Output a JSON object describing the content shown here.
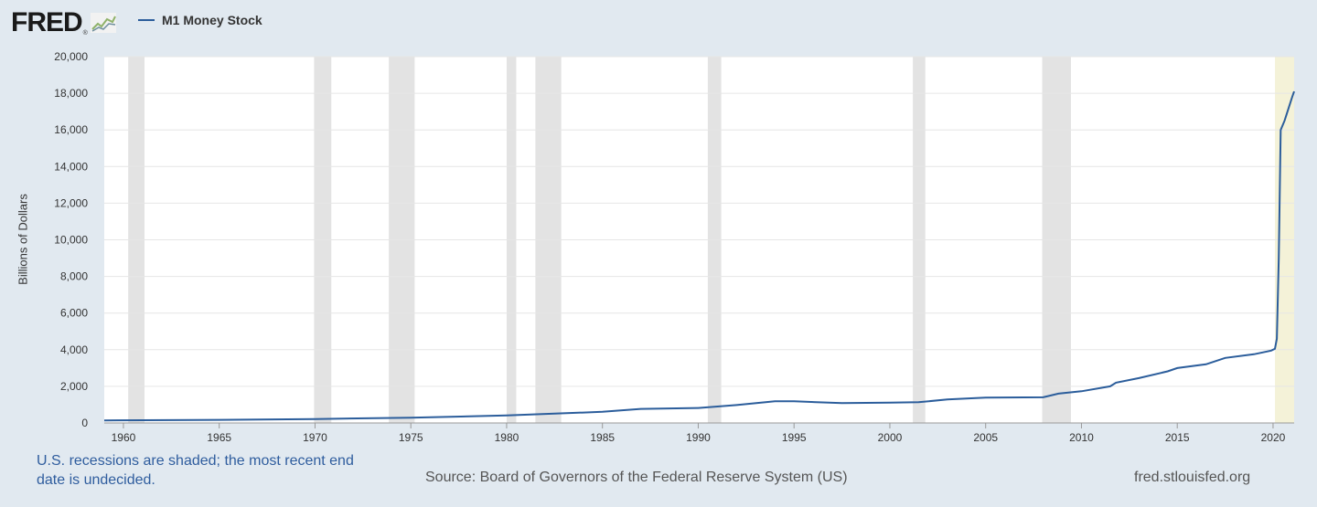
{
  "brand": {
    "name": "FRED",
    "reg": "®",
    "logo_icon": "line-chart-icon"
  },
  "colors": {
    "line": "#2b5d9b",
    "recession": "#e3e3e3",
    "undecided": "#f4f2d8",
    "background": "#e1e9f0",
    "plot": "#ffffff"
  },
  "footer": {
    "note": "U.S. recessions are shaded; the most recent end date is undecided.",
    "source": "Source: Board of Governors of the Federal Reserve System (US)",
    "site": "fred.stlouisfed.org"
  },
  "chart_data": {
    "type": "line",
    "title": "",
    "xlabel": "",
    "ylabel": "Billions of Dollars",
    "xlim": [
      1959,
      2021.1
    ],
    "ylim": [
      0,
      20000
    ],
    "grid": true,
    "legend_position": "top-left",
    "x_ticks": [
      "1960",
      "1965",
      "1970",
      "1975",
      "1980",
      "1985",
      "1990",
      "1995",
      "2000",
      "2005",
      "2010",
      "2015",
      "2020"
    ],
    "y_ticks": [
      "0",
      "2,000",
      "4,000",
      "6,000",
      "8,000",
      "10,000",
      "12,000",
      "14,000",
      "16,000",
      "18,000",
      "20,000"
    ],
    "recessions": [
      [
        1960.25,
        1961.1
      ],
      [
        1969.95,
        1970.85
      ],
      [
        1973.85,
        1975.2
      ],
      [
        1980.0,
        1980.5
      ],
      [
        1981.5,
        1982.85
      ],
      [
        1990.5,
        1991.2
      ],
      [
        2001.2,
        2001.85
      ],
      [
        2007.95,
        2009.45
      ]
    ],
    "recession_undecided": [
      2020.1,
      2021.1
    ],
    "series": [
      {
        "name": "M1 Money Stock",
        "x": [
          1959.0,
          1965.0,
          1970.0,
          1975.0,
          1980.0,
          1985.0,
          1987.0,
          1990.0,
          1992.0,
          1994.0,
          1995.0,
          1997.5,
          2000.0,
          2001.5,
          2003.0,
          2005.0,
          2008.0,
          2008.8,
          2010.0,
          2011.5,
          2011.8,
          2013.0,
          2014.5,
          2015.0,
          2016.5,
          2017.5,
          2019.0,
          2019.9,
          2020.1,
          2020.2,
          2020.3,
          2020.4,
          2020.6,
          2021.0,
          2021.1
        ],
        "values": [
          140,
          170,
          215,
          290,
          410,
          610,
          770,
          820,
          980,
          1180,
          1180,
          1080,
          1110,
          1130,
          1280,
          1380,
          1400,
          1600,
          1730,
          2000,
          2200,
          2450,
          2820,
          3000,
          3200,
          3550,
          3750,
          3950,
          4050,
          4600,
          9000,
          16000,
          16500,
          17800,
          18100
        ]
      }
    ]
  }
}
